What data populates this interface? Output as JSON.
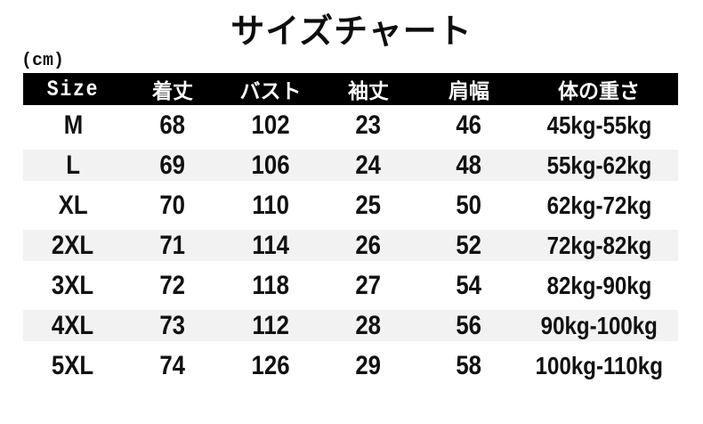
{
  "page": {
    "title": "サイズチャート",
    "unit_label": "(cm)"
  },
  "table": {
    "headers": [
      "Size",
      "着丈",
      "バスト",
      "袖丈",
      "肩幅",
      "体の重さ"
    ],
    "rows": [
      {
        "size": "M",
        "length": "68",
        "bust": "102",
        "sleeve": "23",
        "shoulder": "46",
        "weight": "45kg-55kg"
      },
      {
        "size": "L",
        "length": "69",
        "bust": "106",
        "sleeve": "24",
        "shoulder": "48",
        "weight": "55kg-62kg"
      },
      {
        "size": "XL",
        "length": "70",
        "bust": "110",
        "sleeve": "25",
        "shoulder": "50",
        "weight": "62kg-72kg"
      },
      {
        "size": "2XL",
        "length": "71",
        "bust": "114",
        "sleeve": "26",
        "shoulder": "52",
        "weight": "72kg-82kg"
      },
      {
        "size": "3XL",
        "length": "72",
        "bust": "118",
        "sleeve": "27",
        "shoulder": "54",
        "weight": "82kg-90kg"
      },
      {
        "size": "4XL",
        "length": "73",
        "bust": "112",
        "sleeve": "28",
        "shoulder": "56",
        "weight": "90kg-100kg"
      },
      {
        "size": "5XL",
        "length": "74",
        "bust": "126",
        "sleeve": "29",
        "shoulder": "58",
        "weight": "100kg-110kg"
      }
    ]
  },
  "colors": {
    "header_bg": "#000000",
    "header_text": "#ffffff",
    "stripe_bg": "#f2f2f2",
    "text": "#111111",
    "page_bg": "#ffffff"
  },
  "chart_data": {
    "type": "table",
    "title": "サイズチャート",
    "unit": "cm",
    "columns": [
      "Size",
      "着丈",
      "バスト",
      "袖丈",
      "肩幅",
      "体の重さ"
    ],
    "rows": [
      [
        "M",
        68,
        102,
        23,
        46,
        "45kg-55kg"
      ],
      [
        "L",
        69,
        106,
        24,
        48,
        "55kg-62kg"
      ],
      [
        "XL",
        70,
        110,
        25,
        50,
        "62kg-72kg"
      ],
      [
        "2XL",
        71,
        114,
        26,
        52,
        "72kg-82kg"
      ],
      [
        "3XL",
        72,
        118,
        27,
        54,
        "82kg-90kg"
      ],
      [
        "4XL",
        73,
        112,
        28,
        56,
        "90kg-100kg"
      ],
      [
        "5XL",
        74,
        126,
        29,
        58,
        "100kg-110kg"
      ]
    ]
  }
}
